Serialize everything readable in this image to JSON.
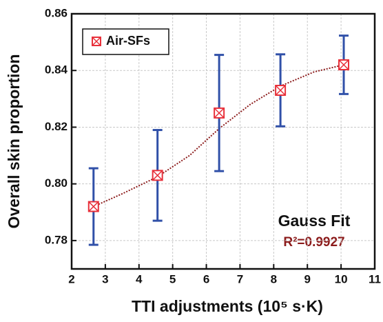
{
  "chart_data": {
    "type": "scatter",
    "x_label": "TTI adjustments (10⁵ s·K)",
    "y_label": "Overall skin proportion",
    "xlim": [
      2,
      11
    ],
    "xticks": [
      2,
      3,
      4,
      5,
      6,
      7,
      8,
      9,
      10,
      11
    ],
    "ylim": [
      0.77,
      0.86
    ],
    "yticks": [
      0.78,
      {
        "value": 0.8,
        "label": "0.80"
      },
      0.82,
      0.84,
      0.86
    ],
    "grid": true,
    "series": [
      {
        "name": "Air-SFs",
        "color": "#e8303a",
        "error_color": "#3050a8",
        "x": [
          2.65,
          4.55,
          6.38,
          8.2,
          10.08
        ],
        "values": [
          0.792,
          0.803,
          0.825,
          0.833,
          0.842
        ],
        "errors": [
          0.0135,
          0.016,
          0.0205,
          0.0127,
          0.0103
        ]
      }
    ],
    "fit": {
      "color": "#8b1a1a",
      "x": [
        2.65,
        3.5,
        4.55,
        5.5,
        6.38,
        7.3,
        8.2,
        9.2,
        10.08
      ],
      "values": [
        0.792,
        0.7965,
        0.8025,
        0.81,
        0.8195,
        0.828,
        0.8345,
        0.8395,
        0.842
      ]
    },
    "legend": "upper left",
    "annotations": [
      "Gauss Fit",
      "R²=0.9927"
    ]
  }
}
